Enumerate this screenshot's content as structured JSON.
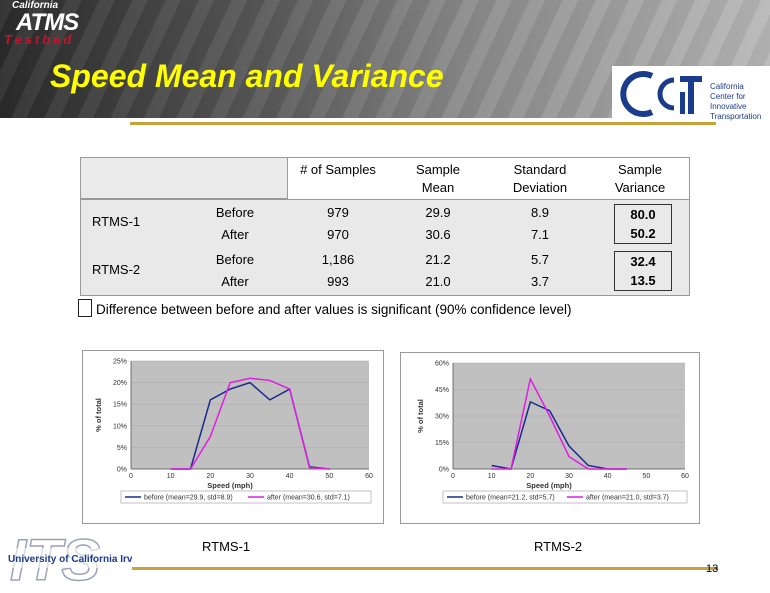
{
  "header": {
    "logo_line1": "California",
    "logo_line2": "ATMS",
    "logo_line3": "Testbed",
    "title": "Speed Mean and Variance",
    "partner_text": "California Center for Innovative Transportation"
  },
  "table": {
    "columns": [
      "# of Samples",
      "Sample Mean",
      "Standard Deviation",
      "Sample Variance"
    ],
    "groups": [
      {
        "name": "RTMS-1",
        "rows": [
          {
            "label": "Before",
            "samples": "979",
            "mean": "29.9",
            "std": "8.9",
            "variance": "80.0"
          },
          {
            "label": "After",
            "samples": "970",
            "mean": "30.6",
            "std": "7.1",
            "variance": "50.2"
          }
        ]
      },
      {
        "name": "RTMS-2",
        "rows": [
          {
            "label": "Before",
            "samples": "1,186",
            "mean": "21.2",
            "std": "5.7",
            "variance": "32.4"
          },
          {
            "label": "After",
            "samples": "993",
            "mean": "21.0",
            "std": "3.7",
            "variance": "13.5"
          }
        ]
      }
    ]
  },
  "note": "Difference between before and after values is significant (90% confidence level)",
  "chart_data": [
    {
      "type": "line",
      "caption": "RTMS-1",
      "xlabel": "Speed (mph)",
      "ylabel": "% of total",
      "xlim": [
        0,
        60
      ],
      "ylim": [
        0,
        25
      ],
      "xticks": [
        "0",
        "10",
        "20",
        "30",
        "40",
        "50",
        "60"
      ],
      "yticks": [
        "0%",
        "5%",
        "10%",
        "15%",
        "20%",
        "25%"
      ],
      "series": [
        {
          "name": "before (mean=29.9, std=8.9)",
          "color": "#1a2a8c",
          "x": [
            10,
            15,
            20,
            25,
            30,
            35,
            40,
            45,
            50
          ],
          "y": [
            0,
            0,
            16,
            18.5,
            20,
            16,
            18.5,
            0.5,
            0
          ]
        },
        {
          "name": "after (mean=30.6, std=7.1)",
          "color": "#e01ee0",
          "x": [
            10,
            15,
            20,
            25,
            30,
            35,
            40,
            45,
            50
          ],
          "y": [
            0,
            0,
            7.5,
            20,
            21,
            20.5,
            18.5,
            0.3,
            0
          ]
        }
      ]
    },
    {
      "type": "line",
      "caption": "RTMS-2",
      "xlabel": "Speed (mph)",
      "ylabel": "% of total",
      "xlim": [
        0,
        60
      ],
      "ylim": [
        0,
        60
      ],
      "xticks": [
        "0",
        "10",
        "20",
        "30",
        "40",
        "50",
        "60"
      ],
      "yticks": [
        "0%",
        "15%",
        "30%",
        "45%",
        "60%"
      ],
      "series": [
        {
          "name": "before (mean=21.2, std=5.7)",
          "color": "#1a2a8c",
          "x": [
            10,
            15,
            20,
            25,
            30,
            35,
            40,
            45
          ],
          "y": [
            2,
            0,
            38,
            33,
            13,
            2,
            0,
            0
          ]
        },
        {
          "name": "after (mean=21.0, std=3.7)",
          "color": "#e01ee0",
          "x": [
            10,
            15,
            20,
            25,
            30,
            35,
            40,
            45
          ],
          "y": [
            0,
            0,
            51,
            30,
            7,
            0,
            0,
            0
          ]
        }
      ]
    }
  ],
  "footer": {
    "its_text": "ITS",
    "its_sub": "University of California Irvine",
    "page": "13"
  }
}
